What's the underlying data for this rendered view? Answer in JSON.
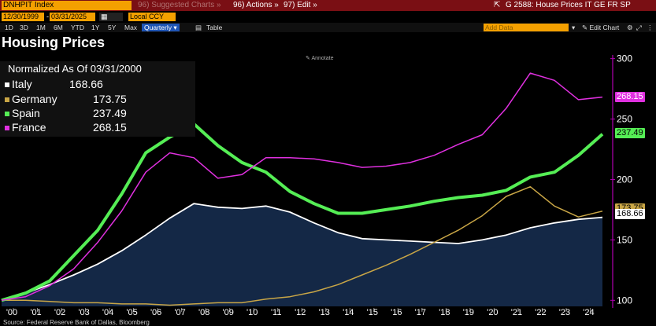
{
  "topbar": {
    "ticker": "DNHPIT Index",
    "suggested": "96) Suggested Charts »",
    "actions": "96) Actions »",
    "edit": "97) Edit »",
    "chart_id": "G 2588: House Prices IT GE FR SP"
  },
  "datebar": {
    "start": "12/30/1999",
    "end": "03/31/2025",
    "currency": "Local CCY"
  },
  "periodbar": {
    "tabs": [
      "1D",
      "3D",
      "1M",
      "6M",
      "YTD",
      "1Y",
      "5Y",
      "Max"
    ],
    "frequency": "Quarterly",
    "table": "Table",
    "add_data": "Add Data",
    "edit_chart": "Edit Chart"
  },
  "title": "Housing Prices",
  "annotate": "Annotate",
  "legend": {
    "normalized": "Normalized As Of 03/31/2000",
    "items": [
      {
        "name": "Italy",
        "value": "168.66",
        "color": "#ffffff"
      },
      {
        "name": "Germany",
        "value": "173.75",
        "color": "#c9a646"
      },
      {
        "name": "Spain",
        "value": "237.49",
        "color": "#55ee55"
      },
      {
        "name": "France",
        "value": "268.15",
        "color": "#e030e0"
      }
    ]
  },
  "source": "Source: Federal Reserve Bank of Dallas, Bloomberg",
  "chart_data": {
    "type": "line",
    "x": [
      "2000",
      "2001",
      "2002",
      "2003",
      "2004",
      "2005",
      "2006",
      "2007",
      "2008",
      "2009",
      "2010",
      "2011",
      "2012",
      "2013",
      "2014",
      "2015",
      "2016",
      "2017",
      "2018",
      "2019",
      "2020",
      "2021",
      "2022",
      "2023",
      "2024",
      "2025"
    ],
    "xlabels": [
      "'00",
      "'01",
      "'02",
      "'03",
      "'04",
      "'05",
      "'06",
      "'07",
      "'08",
      "'09",
      "'10",
      "'11",
      "'12",
      "'13",
      "'14",
      "'15",
      "'16",
      "'17",
      "'18",
      "'19",
      "'20",
      "'21",
      "'22",
      "'23",
      "'24"
    ],
    "yticks": [
      100,
      150,
      200,
      250,
      300
    ],
    "ylim": [
      95,
      303
    ],
    "series": [
      {
        "name": "Italy",
        "color": "#ffffff",
        "fill": true,
        "values": [
          100,
          106,
          113,
          121,
          130,
          141,
          154,
          168,
          180,
          177,
          176,
          178,
          173,
          164,
          156,
          151,
          150,
          149,
          148,
          147,
          150,
          154,
          160,
          164,
          167,
          168.66
        ]
      },
      {
        "name": "Germany",
        "color": "#c9a646",
        "values": [
          100,
          100,
          99,
          98,
          98,
          97,
          97,
          96,
          97,
          98,
          98,
          101,
          103,
          107,
          113,
          121,
          129,
          138,
          148,
          158,
          170,
          186,
          194,
          178,
          169,
          173.75
        ]
      },
      {
        "name": "Spain",
        "color": "#55ee55",
        "values": [
          100,
          106,
          116,
          137,
          158,
          188,
          222,
          235,
          246,
          228,
          214,
          206,
          190,
          180,
          172,
          172,
          175,
          178,
          182,
          185,
          187,
          191,
          202,
          206,
          220,
          237.49
        ]
      },
      {
        "name": "France",
        "color": "#e030e0",
        "values": [
          100,
          103,
          112,
          126,
          148,
          174,
          206,
          222,
          218,
          201,
          204,
          218,
          218,
          217,
          214,
          210,
          211,
          214,
          220,
          229,
          237,
          259,
          288,
          282,
          266,
          268.15
        ]
      }
    ]
  }
}
